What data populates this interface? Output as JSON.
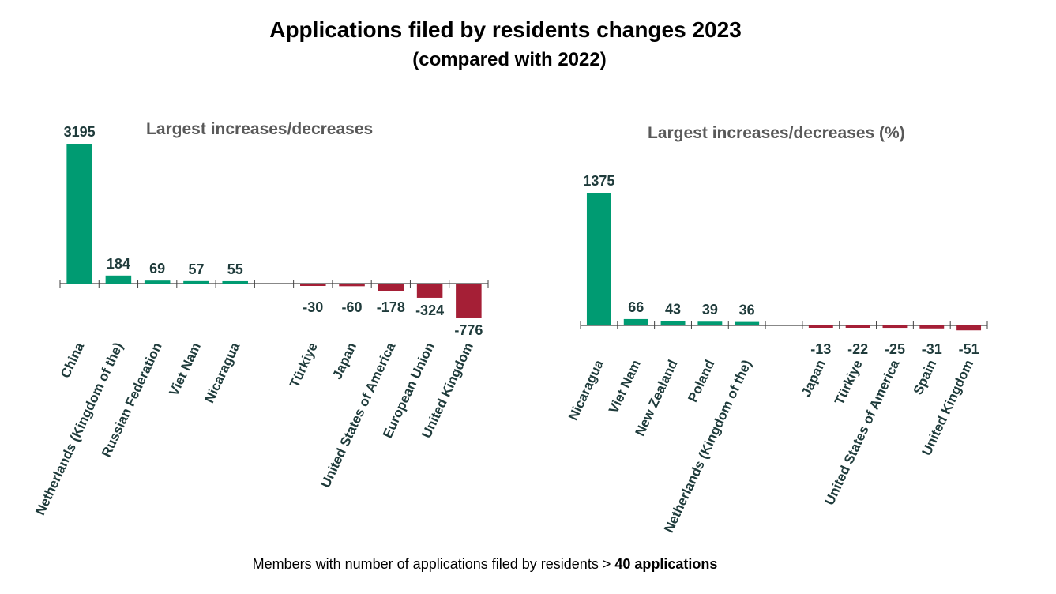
{
  "title": "Applications filed by residents changes 2023",
  "subtitle": "(compared with 2022)",
  "footnote": {
    "text": "Members with number of applications filed by residents > ",
    "bold": "40 applications"
  },
  "colors": {
    "increase": "#009B72",
    "decrease": "#A51F36",
    "label": "#1F3B3B",
    "axis": "#404040"
  },
  "chart_data": [
    {
      "type": "bar",
      "title": "Largest increases/decreases",
      "categories": [
        "China",
        "Netherlands (Kingdom of the)",
        "Russian Federation",
        "Viet Nam",
        "Nicaragua",
        "",
        "Türkiye",
        "Japan",
        "United States of America",
        "European Union",
        "United Kingdom"
      ],
      "values": [
        3195,
        184,
        69,
        57,
        55,
        null,
        -30,
        -60,
        -178,
        -324,
        -776
      ],
      "data_labels": [
        "3195",
        "184",
        "69",
        "57",
        "55",
        "",
        "-30",
        "-60",
        "-178",
        "-324",
        "-776"
      ],
      "xlabel": "",
      "ylabel": "",
      "ylim": [
        -776,
        3195
      ],
      "grid": false,
      "legend": "none"
    },
    {
      "type": "bar",
      "title": "Largest increases/decreases (%)",
      "categories": [
        "Nicaragua",
        "Viet Nam",
        "New Zealand",
        "Poland",
        "Netherlands (Kingdom of the)",
        "",
        "Japan",
        "Türkiye",
        "United States of America",
        "Spain",
        "United Kingdom"
      ],
      "values": [
        1375,
        66,
        43,
        39,
        36,
        null,
        -13,
        -22,
        -25,
        -31,
        -51
      ],
      "data_labels": [
        "1375",
        "66",
        "43",
        "39",
        "36",
        "",
        "-13",
        "-22",
        "-25",
        "-31",
        "-51"
      ],
      "xlabel": "",
      "ylabel": "",
      "ylim": [
        -51,
        1375
      ],
      "grid": false,
      "legend": "none"
    }
  ]
}
